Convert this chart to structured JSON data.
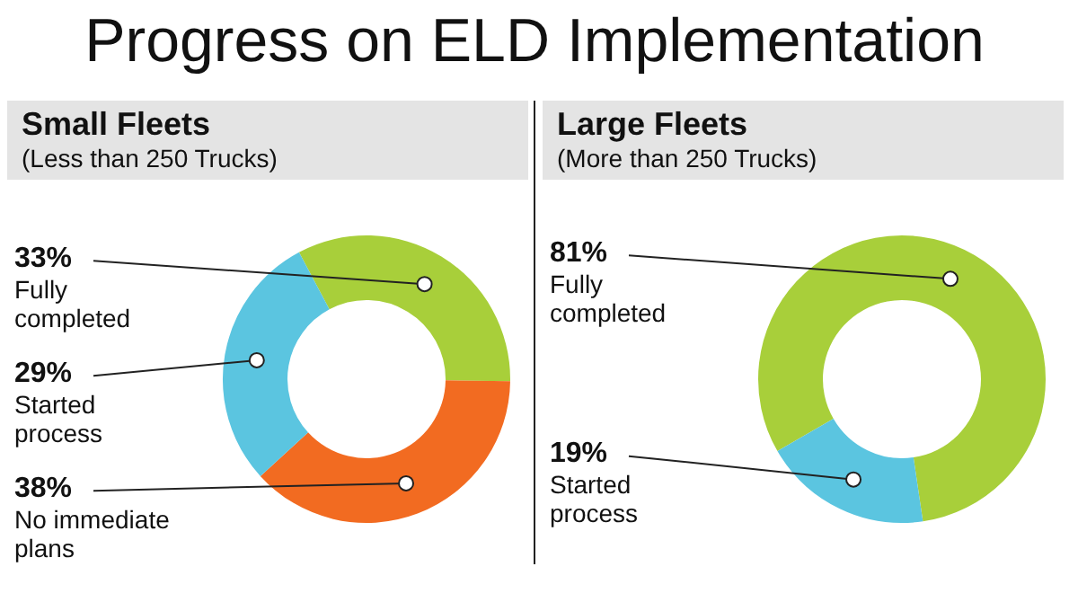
{
  "chart_data": [
    {
      "type": "other",
      "title": "Progress on ELD Implementation"
    },
    {
      "type": "donut",
      "title": "Small Fleets",
      "subtitle": "(Less than 250 Trucks)",
      "categories": [
        "Fully completed",
        "No immediate plans",
        "Started process"
      ],
      "values": [
        33,
        38,
        29
      ],
      "value_labels": [
        "33%",
        "38%",
        "29%"
      ],
      "colors": [
        "#a8cf3a",
        "#f26b21",
        "#5bc5e0"
      ],
      "legend": false
    },
    {
      "type": "donut",
      "title": "Large Fleets",
      "subtitle": "(More than 250 Trucks)",
      "categories": [
        "Fully completed",
        "Started process"
      ],
      "values": [
        81,
        19
      ],
      "value_labels": [
        "81%",
        "19%"
      ],
      "colors": [
        "#a8cf3a",
        "#5bc5e0"
      ],
      "legend": false
    }
  ]
}
